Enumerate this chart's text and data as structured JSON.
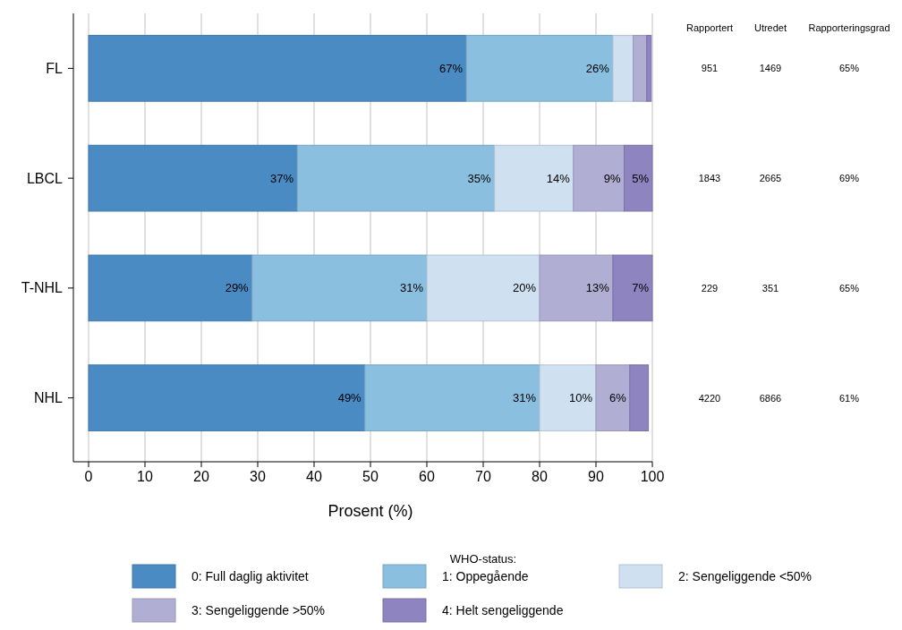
{
  "chart_data": {
    "type": "bar",
    "orientation": "horizontal",
    "stacked": true,
    "xlabel": "Prosent (%)",
    "legend_title": "WHO-status:",
    "legend": "bottom",
    "grid": "x",
    "categories": [
      "FL",
      "LBCL",
      "T-NHL",
      "NHL"
    ],
    "xlim": [
      0,
      100
    ],
    "xticks": [
      0,
      10,
      20,
      30,
      40,
      50,
      60,
      70,
      80,
      90,
      100
    ],
    "series": [
      {
        "name": "0: Full daglig aktivitet",
        "color": "#4a8bc4",
        "values": [
          67,
          37,
          29,
          49
        ],
        "value_labels": [
          "67%",
          "37%",
          "29%",
          "49%"
        ]
      },
      {
        "name": "1: Oppegående",
        "color": "#8abfe0",
        "values": [
          26,
          35,
          31,
          31
        ],
        "value_labels": [
          "26%",
          "35%",
          "31%",
          "31%"
        ]
      },
      {
        "name": "2: Sengeliggende <50%",
        "color": "#cfe0f1",
        "values": [
          3.6,
          14,
          20,
          10
        ],
        "value_labels": [
          null,
          "14%",
          "20%",
          "10%"
        ]
      },
      {
        "name": "3: Sengeliggende >50%",
        "color": "#b1aed4",
        "values": [
          2.4,
          9,
          13,
          6
        ],
        "value_labels": [
          null,
          "9%",
          "13%",
          "6%"
        ]
      },
      {
        "name": "4: Helt sengeliggende",
        "color": "#8e84c0",
        "values": [
          0.8,
          5,
          7,
          3.3
        ],
        "value_labels": [
          null,
          "5%",
          "7%",
          null
        ]
      }
    ],
    "annotations": [
      "Rapportert",
      "Utredet",
      "Rapporteringsgrad",
      "951",
      "1469",
      "65%",
      "1843",
      "2665",
      "69%",
      "229",
      "351",
      "65%",
      "4220",
      "6866",
      "61%"
    ]
  }
}
